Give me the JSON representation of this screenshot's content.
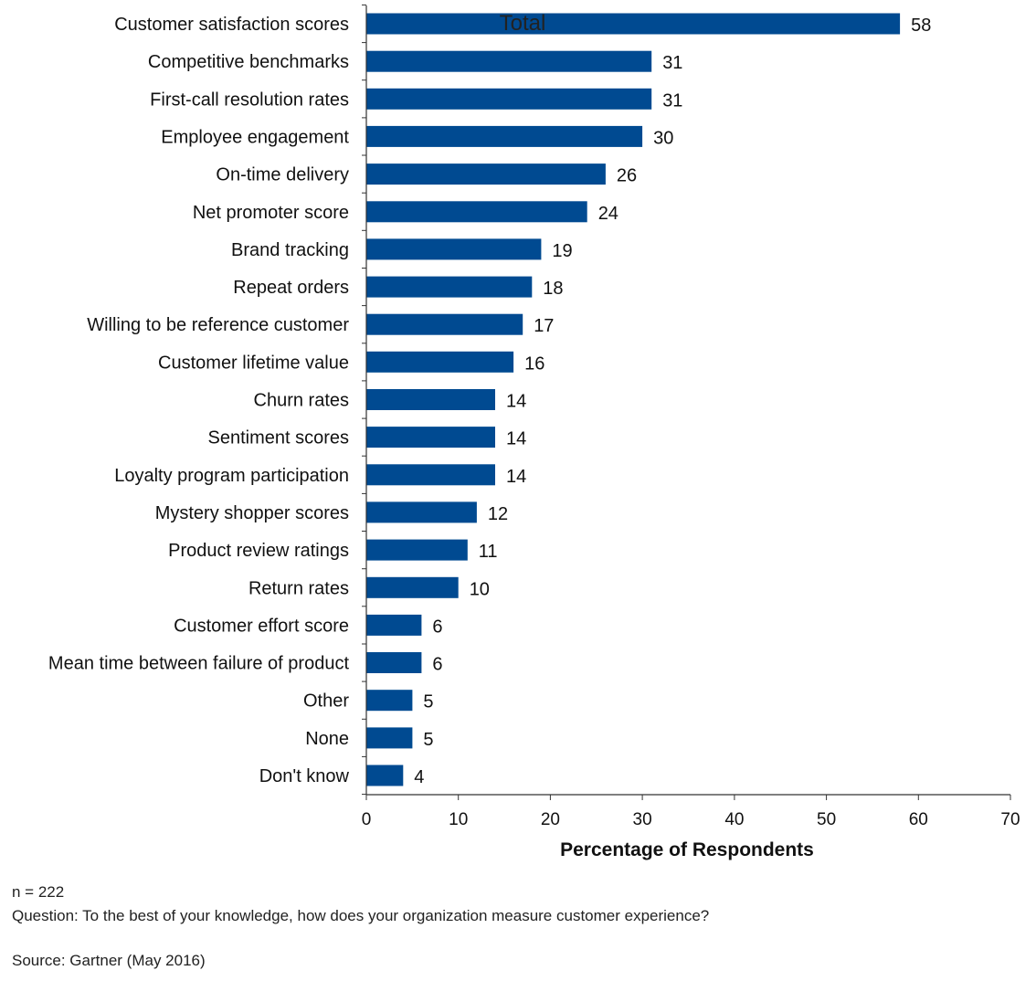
{
  "chart_data": {
    "type": "bar",
    "orientation": "horizontal",
    "categories": [
      "Customer satisfaction scores",
      "Competitive benchmarks",
      "First-call resolution rates",
      "Employee engagement",
      "On-time delivery",
      "Net promoter score",
      "Brand tracking",
      "Repeat orders",
      "Willing to be reference customer",
      "Customer lifetime value",
      "Churn rates",
      "Sentiment scores",
      "Loyalty program participation",
      "Mystery shopper scores",
      "Product review ratings",
      "Return rates",
      "Customer effort score",
      "Mean time between failure of product",
      "Other",
      "None",
      "Don't know"
    ],
    "series": [
      {
        "name": "Total",
        "values": [
          58,
          31,
          31,
          30,
          26,
          24,
          19,
          18,
          17,
          16,
          14,
          14,
          14,
          12,
          11,
          10,
          6,
          6,
          5,
          5,
          4
        ]
      }
    ],
    "xlabel": "Percentage of Respondents",
    "ylabel": "",
    "xlim": [
      0,
      70
    ],
    "xticks": [
      0,
      10,
      20,
      30,
      40,
      50,
      60,
      70
    ],
    "grid": false,
    "legend_position": "top",
    "bar_color": "#004a91"
  },
  "notes": {
    "n": "n = 222",
    "question": "Question: To the best of your knowledge, how does your organization measure customer experience?",
    "source": "Source: Gartner (May 2016)"
  }
}
